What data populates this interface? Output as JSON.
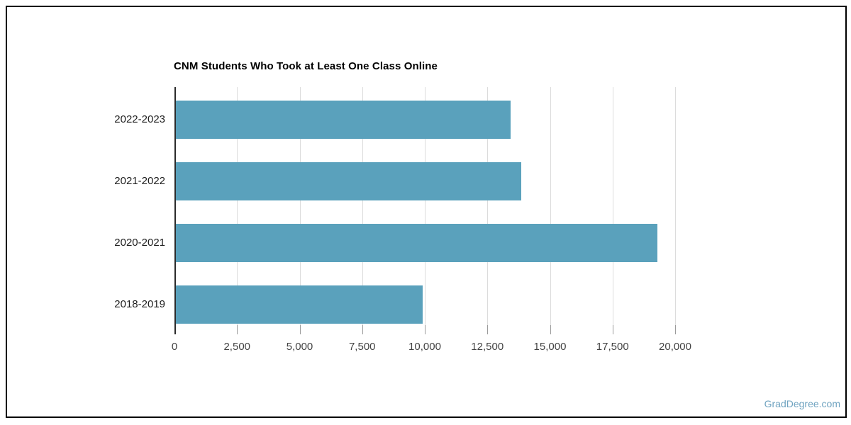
{
  "chart_data": {
    "type": "bar",
    "orientation": "horizontal",
    "title": "CNM Students Who Took at Least One Class Online",
    "categories": [
      "2022-2023",
      "2021-2022",
      "2020-2021",
      "2018-2019"
    ],
    "values": [
      13360,
      13790,
      19230,
      9870
    ],
    "xlabel": "",
    "ylabel": "",
    "xlim": [
      0,
      20000
    ],
    "x_ticks": [
      0,
      2500,
      5000,
      7500,
      10000,
      12500,
      15000,
      17500,
      20000
    ],
    "x_tick_labels": [
      "0",
      "2,500",
      "5,000",
      "7,500",
      "10,000",
      "12,500",
      "15,000",
      "17,500",
      "20,000"
    ],
    "grid": true,
    "legend": "none",
    "bar_color": "#5aa1bc",
    "gridline_color": "#dcdcdc",
    "axis_color": "#2b2b2b",
    "tick_color": "#9b9b9b"
  },
  "frame": {
    "border_color": "#000000"
  },
  "watermark": {
    "text": "GradDegree.com",
    "color": "#6fa3c0"
  }
}
